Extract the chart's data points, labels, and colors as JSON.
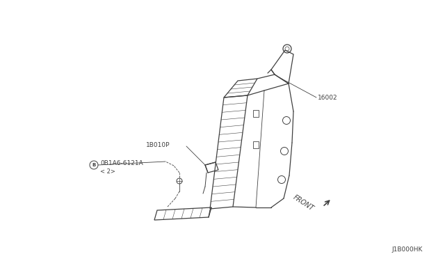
{
  "bg_color": "#ffffff",
  "line_color": "#404040",
  "label_color": "#404040",
  "part_number_16002": "16002",
  "part_number_1B010P": "1B010P",
  "part_number_bolt": "0B1A6-6121A",
  "part_number_bolt_qty": "< 2>",
  "front_label": "FRONT",
  "diagram_code": "J1B000HK",
  "label_fontsize": 6.5
}
